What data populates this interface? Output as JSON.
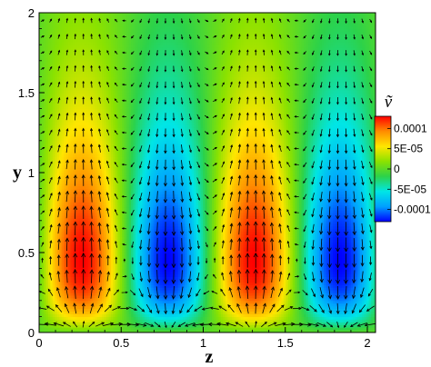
{
  "chart_data": {
    "type": "heatmap",
    "title": "",
    "xlabel": "z",
    "ylabel": "y",
    "xlim": [
      0,
      2.05
    ],
    "ylim": [
      0,
      2
    ],
    "x_ticks": [
      0,
      0.5,
      1,
      1.5,
      2
    ],
    "x_tick_labels": [
      "0",
      "0.5",
      "1",
      "1.5",
      "2"
    ],
    "y_ticks": [
      0,
      0.5,
      1,
      1.5,
      2
    ],
    "y_tick_labels": [
      "0",
      "0.5",
      "1",
      "1.5",
      "2"
    ],
    "grid": false,
    "field": {
      "quantity": "v tilde (wall-normal velocity perturbation)",
      "form": "v = A * sin(2*pi*z/1.05 + phase) * f(y)",
      "amplitude": 0.00013,
      "spanwise_period": 1.05,
      "peak_y": 0.45,
      "extrema": [
        {
          "z": 0.26,
          "y": 0.45,
          "value": 0.00013
        },
        {
          "z": 0.79,
          "y": 0.45,
          "value": -0.00013
        },
        {
          "z": 1.31,
          "y": 0.45,
          "value": 0.00013
        },
        {
          "z": 1.84,
          "y": 0.45,
          "value": -0.00013
        }
      ]
    },
    "vector_field": {
      "shown": true,
      "color": "#000000",
      "description": "in-plane velocity arrows (w, v) overlaid on contours"
    },
    "colorbar": {
      "title": "ṽ",
      "min": -0.00013,
      "max": 0.00013,
      "ticks": [
        0.0001,
        5e-05,
        0,
        -5e-05,
        -0.0001
      ],
      "tick_labels": [
        "0.0001",
        "5E-05",
        "0",
        "-5E-05",
        "-0.0001"
      ],
      "colormap": [
        "#0000ff",
        "#00a0ff",
        "#00e6e6",
        "#2cd24a",
        "#8be200",
        "#ffe600",
        "#ff8c00",
        "#ff0000"
      ]
    }
  }
}
